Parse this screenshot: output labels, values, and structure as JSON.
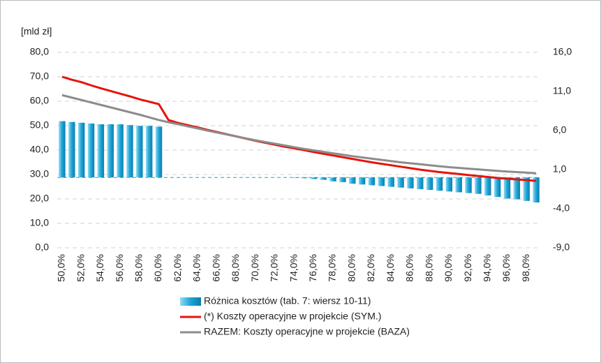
{
  "chart_data": {
    "type": "combo",
    "y_label": "[mld zł]",
    "categories": [
      "50,0%",
      null,
      "52,0%",
      null,
      "54,0%",
      null,
      "56,0%",
      null,
      "58,0%",
      null,
      "60,0%",
      null,
      "62,0%",
      null,
      "64,0%",
      null,
      "66,0%",
      null,
      "68,0%",
      null,
      "70,0%",
      null,
      "72,0%",
      null,
      "74,0%",
      null,
      "76,0%",
      null,
      "78,0%",
      null,
      "80,0%",
      null,
      "82,0%",
      null,
      "84,0%",
      null,
      "86,0%",
      null,
      "88,0%",
      null,
      "90,0%",
      null,
      "92,0%",
      null,
      "94,0%",
      null,
      "96,0%",
      null,
      "98,0%",
      null
    ],
    "ylim": [
      0,
      80
    ],
    "yticks": [
      {
        "value": 0,
        "label": "0,0"
      },
      {
        "value": 10,
        "label": "10,0"
      },
      {
        "value": 20,
        "label": "20,0"
      },
      {
        "value": 30,
        "label": "30,0"
      },
      {
        "value": 40,
        "label": "40,0"
      },
      {
        "value": 50,
        "label": "50,0"
      },
      {
        "value": 60,
        "label": "60,0"
      },
      {
        "value": 70,
        "label": "70,0"
      },
      {
        "value": 80,
        "label": "80,0"
      }
    ],
    "y2lim": [
      -9,
      16
    ],
    "y2ticks": [
      {
        "value": -9,
        "label": "-9,0"
      },
      {
        "value": -4,
        "label": "-4,0"
      },
      {
        "value": 1,
        "label": "1,0"
      },
      {
        "value": 6,
        "label": "6,0"
      },
      {
        "value": 11,
        "label": "11,0"
      },
      {
        "value": 16,
        "label": "16,0"
      }
    ],
    "grid": true,
    "series": [
      {
        "name": "Różnica kosztów (tab. 7: wiersz 10-11)",
        "type": "bar",
        "axis": "y2",
        "color": "#1fa3d4",
        "values": [
          7.2,
          7.1,
          7.0,
          6.9,
          6.8,
          6.8,
          6.8,
          6.7,
          6.6,
          6.6,
          6.5,
          0,
          0,
          0,
          0,
          0,
          0,
          0,
          0,
          0,
          0,
          0,
          0,
          0,
          -0.05,
          -0.1,
          -0.2,
          -0.3,
          -0.5,
          -0.6,
          -0.8,
          -0.9,
          -1.0,
          -1.1,
          -1.2,
          -1.3,
          -1.4,
          -1.5,
          -1.6,
          -1.7,
          -1.8,
          -1.9,
          -2.0,
          -2.1,
          -2.3,
          -2.5,
          -2.7,
          -2.8,
          -3.0,
          -3.2
        ]
      },
      {
        "name": "(*) Koszty operacyjne w projekcie (SYM.)",
        "type": "line",
        "color": "#e8120c",
        "values": [
          70,
          68.8,
          67.8,
          66.5,
          65.3,
          64.2,
          63.1,
          62,
          60.8,
          59.8,
          58.8,
          52.3,
          51.1,
          50.2,
          49.3,
          48.3,
          47.4,
          46.5,
          45.6,
          44.7,
          43.8,
          43.0,
          42.2,
          41.4,
          40.7,
          40.0,
          39.2,
          38.5,
          37.8,
          37.1,
          36.4,
          35.7,
          35.0,
          34.4,
          33.8,
          33.2,
          32.6,
          32.0,
          31.5,
          31.0,
          30.6,
          30.2,
          29.8,
          29.4,
          29.0,
          28.6,
          28.3,
          28.0,
          27.7,
          27.4
        ]
      },
      {
        "name": "RAZEM: Koszty operacyjne w projekcie (BAZA)",
        "type": "line",
        "color": "#8c8c8c",
        "values": [
          62.5,
          61.5,
          60.5,
          59.5,
          58.5,
          57.5,
          56.5,
          55.5,
          54.5,
          53.4,
          52.3,
          51.4,
          50.6,
          49.7,
          48.9,
          48.0,
          47.2,
          46.4,
          45.6,
          44.8,
          44.0,
          43.3,
          42.6,
          41.9,
          41.2,
          40.5,
          39.9,
          39.3,
          38.7,
          38.1,
          37.5,
          37.0,
          36.5,
          36.0,
          35.5,
          35.0,
          34.6,
          34.2,
          33.8,
          33.4,
          33.0,
          32.7,
          32.4,
          32.1,
          31.8,
          31.5,
          31.2,
          31.0,
          30.8,
          30.5
        ]
      }
    ]
  }
}
